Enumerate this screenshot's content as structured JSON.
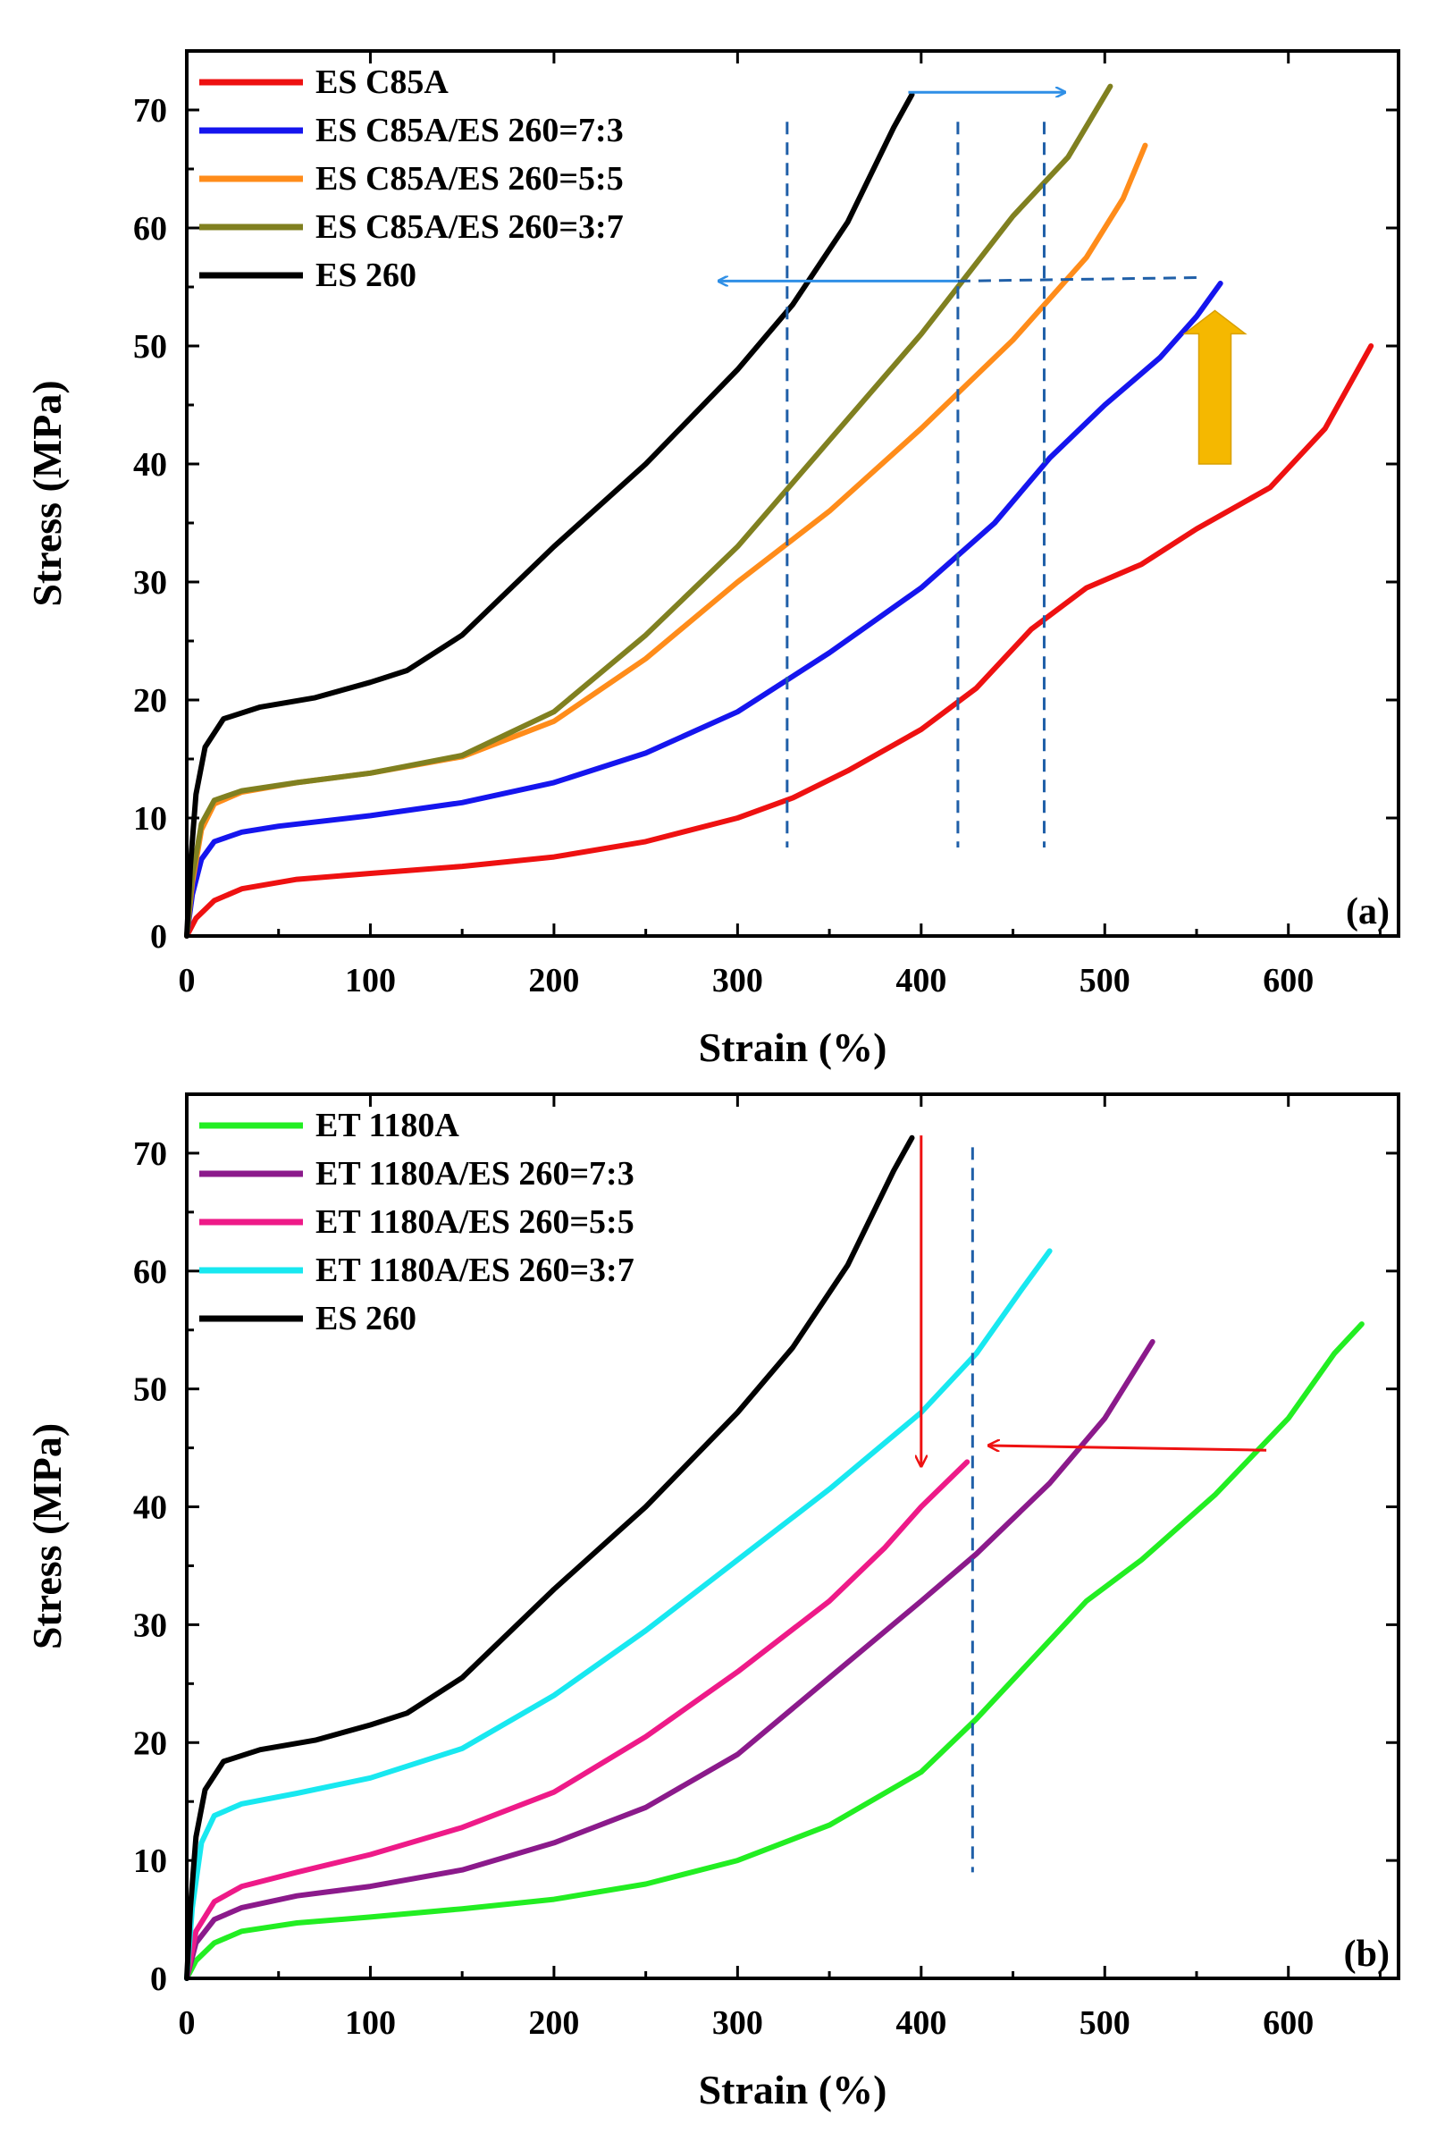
{
  "chart_data": [
    {
      "type": "line",
      "panel_label": "(a)",
      "xlabel": "Strain (%)",
      "ylabel": "Stress (MPa)",
      "xlim": [
        0,
        660
      ],
      "ylim": [
        0,
        75
      ],
      "xticks": [
        0,
        100,
        200,
        300,
        400,
        500,
        600
      ],
      "yticks": [
        0,
        10,
        20,
        30,
        40,
        50,
        60,
        70
      ],
      "legend_position": "top-left",
      "grid": false,
      "series": [
        {
          "name": "ES C85A",
          "color": "#ee1111",
          "points": [
            [
              0,
              0
            ],
            [
              5,
              1.5
            ],
            [
              15,
              3
            ],
            [
              30,
              4
            ],
            [
              60,
              4.8
            ],
            [
              100,
              5.3
            ],
            [
              150,
              5.9
            ],
            [
              200,
              6.7
            ],
            [
              250,
              8
            ],
            [
              300,
              10
            ],
            [
              330,
              11.7
            ],
            [
              360,
              14
            ],
            [
              400,
              17.5
            ],
            [
              430,
              21
            ],
            [
              460,
              26
            ],
            [
              490,
              29.5
            ],
            [
              520,
              31.5
            ],
            [
              550,
              34.5
            ],
            [
              590,
              38
            ],
            [
              620,
              43
            ],
            [
              645,
              50
            ]
          ]
        },
        {
          "name": "ES C85A/ES 260=7:3",
          "color": "#1515ee",
          "points": [
            [
              0,
              0
            ],
            [
              3,
              3.5
            ],
            [
              8,
              6.5
            ],
            [
              15,
              8
            ],
            [
              30,
              8.8
            ],
            [
              50,
              9.3
            ],
            [
              100,
              10.2
            ],
            [
              150,
              11.3
            ],
            [
              200,
              13
            ],
            [
              250,
              15.5
            ],
            [
              300,
              19
            ],
            [
              350,
              24
            ],
            [
              400,
              29.5
            ],
            [
              440,
              35
            ],
            [
              470,
              40.5
            ],
            [
              500,
              45
            ],
            [
              530,
              49
            ],
            [
              550,
              52.5
            ],
            [
              563,
              55.3
            ]
          ]
        },
        {
          "name": "ES C85A/ES 260=5:5",
          "color": "#ff8c1a",
          "points": [
            [
              0,
              0
            ],
            [
              3,
              4.5
            ],
            [
              8,
              9
            ],
            [
              15,
              11.2
            ],
            [
              30,
              12.2
            ],
            [
              60,
              13
            ],
            [
              100,
              13.8
            ],
            [
              150,
              15.2
            ],
            [
              200,
              18.2
            ],
            [
              250,
              23.5
            ],
            [
              300,
              30
            ],
            [
              350,
              36
            ],
            [
              400,
              43
            ],
            [
              450,
              50.5
            ],
            [
              490,
              57.5
            ],
            [
              510,
              62.5
            ],
            [
              522,
              67
            ]
          ]
        },
        {
          "name": "ES C85A/ES 260=3:7",
          "color": "#808020",
          "points": [
            [
              0,
              0
            ],
            [
              3,
              5
            ],
            [
              8,
              9.5
            ],
            [
              15,
              11.5
            ],
            [
              30,
              12.3
            ],
            [
              60,
              13
            ],
            [
              100,
              13.8
            ],
            [
              150,
              15.3
            ],
            [
              200,
              19
            ],
            [
              250,
              25.5
            ],
            [
              300,
              33
            ],
            [
              350,
              42
            ],
            [
              400,
              51
            ],
            [
              450,
              61
            ],
            [
              480,
              66
            ],
            [
              503,
              72
            ]
          ]
        },
        {
          "name": "ES 260",
          "color": "#000000",
          "points": [
            [
              0,
              0
            ],
            [
              2,
              6
            ],
            [
              5,
              12
            ],
            [
              10,
              16
            ],
            [
              20,
              18.4
            ],
            [
              40,
              19.4
            ],
            [
              70,
              20.2
            ],
            [
              100,
              21.5
            ],
            [
              120,
              22.5
            ],
            [
              150,
              25.5
            ],
            [
              200,
              33
            ],
            [
              250,
              40
            ],
            [
              300,
              48
            ],
            [
              330,
              53.5
            ],
            [
              360,
              60.5
            ],
            [
              385,
              68.5
            ],
            [
              395,
              71.3
            ]
          ]
        }
      ]
    },
    {
      "type": "line",
      "panel_label": "(b)",
      "xlabel": "Strain (%)",
      "ylabel": "Stress (MPa)",
      "xlim": [
        0,
        660
      ],
      "ylim": [
        0,
        75
      ],
      "xticks": [
        0,
        100,
        200,
        300,
        400,
        500,
        600
      ],
      "yticks": [
        0,
        10,
        20,
        30,
        40,
        50,
        60,
        70
      ],
      "legend_position": "top-left",
      "grid": false,
      "series": [
        {
          "name": "ET 1180A",
          "color": "#22ee22",
          "points": [
            [
              0,
              0
            ],
            [
              5,
              1.5
            ],
            [
              15,
              3
            ],
            [
              30,
              4
            ],
            [
              60,
              4.7
            ],
            [
              100,
              5.2
            ],
            [
              150,
              5.9
            ],
            [
              200,
              6.7
            ],
            [
              250,
              8
            ],
            [
              300,
              10
            ],
            [
              350,
              13
            ],
            [
              400,
              17.5
            ],
            [
              430,
              22
            ],
            [
              460,
              27
            ],
            [
              490,
              32
            ],
            [
              520,
              35.5
            ],
            [
              560,
              41
            ],
            [
              600,
              47.5
            ],
            [
              625,
              53
            ],
            [
              640,
              55.5
            ]
          ]
        },
        {
          "name": "ET 1180A/ES 260=7:3",
          "color": "#8b1a8b",
          "points": [
            [
              0,
              0
            ],
            [
              5,
              3
            ],
            [
              15,
              5
            ],
            [
              30,
              6
            ],
            [
              60,
              7
            ],
            [
              100,
              7.8
            ],
            [
              150,
              9.2
            ],
            [
              200,
              11.5
            ],
            [
              250,
              14.5
            ],
            [
              300,
              19
            ],
            [
              350,
              25.5
            ],
            [
              400,
              32
            ],
            [
              430,
              36
            ],
            [
              470,
              42
            ],
            [
              500,
              47.5
            ],
            [
              526,
              54
            ]
          ]
        },
        {
          "name": "ET 1180A/ES 260=5:5",
          "color": "#ee1a88",
          "points": [
            [
              0,
              0
            ],
            [
              5,
              4
            ],
            [
              15,
              6.5
            ],
            [
              30,
              7.8
            ],
            [
              60,
              9
            ],
            [
              100,
              10.5
            ],
            [
              150,
              12.8
            ],
            [
              200,
              15.8
            ],
            [
              250,
              20.5
            ],
            [
              300,
              26
            ],
            [
              350,
              32
            ],
            [
              380,
              36.5
            ],
            [
              400,
              40
            ],
            [
              425,
              43.8
            ]
          ]
        },
        {
          "name": "ET 1180A/ES 260=3:7",
          "color": "#18e8f0",
          "points": [
            [
              0,
              0
            ],
            [
              3,
              6
            ],
            [
              8,
              11.5
            ],
            [
              15,
              13.8
            ],
            [
              30,
              14.8
            ],
            [
              60,
              15.7
            ],
            [
              100,
              17
            ],
            [
              150,
              19.5
            ],
            [
              200,
              24
            ],
            [
              250,
              29.5
            ],
            [
              300,
              35.5
            ],
            [
              350,
              41.5
            ],
            [
              400,
              48
            ],
            [
              430,
              53
            ],
            [
              455,
              58.5
            ],
            [
              470,
              61.7
            ]
          ]
        },
        {
          "name": "ES 260",
          "color": "#000000",
          "points": [
            [
              0,
              0
            ],
            [
              2,
              6
            ],
            [
              5,
              12
            ],
            [
              10,
              16
            ],
            [
              20,
              18.4
            ],
            [
              40,
              19.4
            ],
            [
              70,
              20.2
            ],
            [
              100,
              21.5
            ],
            [
              120,
              22.5
            ],
            [
              150,
              25.5
            ],
            [
              200,
              33
            ],
            [
              250,
              40
            ],
            [
              300,
              48
            ],
            [
              330,
              53.5
            ],
            [
              360,
              60.5
            ],
            [
              385,
              68.5
            ],
            [
              395,
              71.3
            ]
          ]
        }
      ]
    }
  ],
  "annotations": {
    "a": {
      "vlines_x": [
        327,
        420,
        467
      ],
      "vline_color": "#1f5fa8",
      "arrow_color": "#2f8fe6",
      "block_arrow_color": "#f5b800",
      "right_arrow": {
        "from": [
          393,
          71.5
        ],
        "to": [
          478,
          71.5
        ]
      },
      "left_arrow": {
        "from": [
          420,
          55.5
        ],
        "to": [
          290,
          55.5
        ]
      },
      "dashed_hline": {
        "from": [
          420,
          55.5
        ],
        "to": [
          553,
          55.8
        ]
      },
      "block_arrow": {
        "x": 560,
        "y_from": 40,
        "y_to": 53
      }
    },
    "b": {
      "vline_x": 428,
      "vline_color": "#1f5fa8",
      "arrow_color": "#ee1111",
      "down_arrow": {
        "from": [
          400,
          71.5
        ],
        "to": [
          400,
          43.5
        ]
      },
      "left_arrow": {
        "from": [
          588,
          44.8
        ],
        "to": [
          437,
          45.2
        ]
      }
    }
  }
}
